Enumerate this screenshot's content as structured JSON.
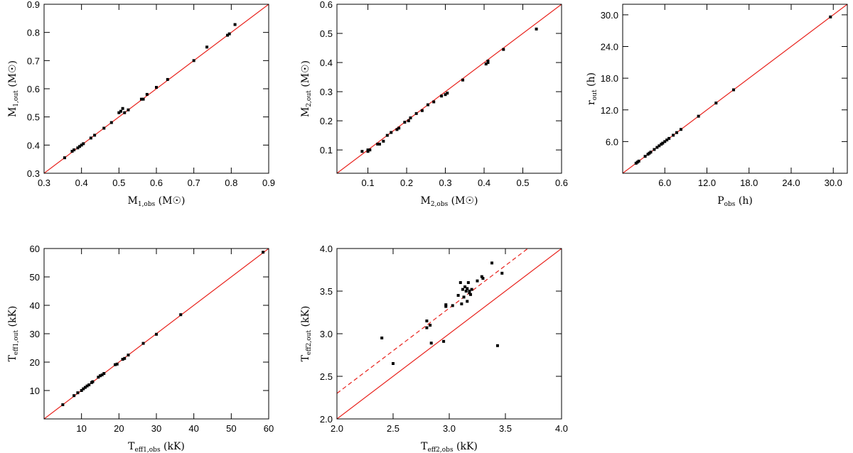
{
  "chart_data": [
    {
      "id": "m1",
      "type": "scatter",
      "xlim": [
        0.3,
        0.9
      ],
      "ylim": [
        0.3,
        0.9
      ],
      "xticks": [
        0.3,
        0.4,
        0.5,
        0.6,
        0.7,
        0.8,
        0.9
      ],
      "yticks": [
        0.3,
        0.4,
        0.5,
        0.6,
        0.7,
        0.8,
        0.9
      ],
      "xtick_labels": [
        "0.3",
        "0.4",
        "0.5",
        "0.6",
        "0.7",
        "0.8",
        "0.9"
      ],
      "ytick_labels": [
        "0.3",
        "0.4",
        "0.5",
        "0.6",
        "0.7",
        "0.8",
        "0.9"
      ],
      "xlabel": {
        "main": "M",
        "sub": "1,obs",
        "unit": " (M☉)"
      },
      "ylabel": {
        "main": "M",
        "sub": "1,out",
        "unit": " (M☉)"
      },
      "lines": [
        {
          "style": "solid",
          "color": "#e8211b",
          "from": [
            0.3,
            0.3
          ],
          "to": [
            0.9,
            0.9
          ]
        }
      ],
      "points": [
        [
          0.355,
          0.355
        ],
        [
          0.375,
          0.378
        ],
        [
          0.38,
          0.383
        ],
        [
          0.39,
          0.39
        ],
        [
          0.395,
          0.395
        ],
        [
          0.4,
          0.4
        ],
        [
          0.405,
          0.405
        ],
        [
          0.425,
          0.425
        ],
        [
          0.435,
          0.435
        ],
        [
          0.46,
          0.46
        ],
        [
          0.48,
          0.48
        ],
        [
          0.5,
          0.515
        ],
        [
          0.505,
          0.52
        ],
        [
          0.51,
          0.53
        ],
        [
          0.515,
          0.515
        ],
        [
          0.525,
          0.525
        ],
        [
          0.56,
          0.563
        ],
        [
          0.565,
          0.563
        ],
        [
          0.575,
          0.58
        ],
        [
          0.6,
          0.605
        ],
        [
          0.63,
          0.633
        ],
        [
          0.7,
          0.7
        ],
        [
          0.735,
          0.748
        ],
        [
          0.79,
          0.79
        ],
        [
          0.795,
          0.795
        ],
        [
          0.81,
          0.828
        ]
      ]
    },
    {
      "id": "m2",
      "type": "scatter",
      "xlim": [
        0.02,
        0.6
      ],
      "ylim": [
        0.02,
        0.6
      ],
      "xticks": [
        0.1,
        0.2,
        0.3,
        0.4,
        0.5,
        0.6
      ],
      "yticks": [
        0.1,
        0.2,
        0.3,
        0.4,
        0.5,
        0.6
      ],
      "xtick_labels": [
        "0.1",
        "0.2",
        "0.3",
        "0.4",
        "0.5",
        "0.6"
      ],
      "ytick_labels": [
        "0.1",
        "0.2",
        "0.3",
        "0.4",
        "0.5",
        "0.6"
      ],
      "xlabel": {
        "main": "M",
        "sub": "2,obs",
        "unit": " (M☉)"
      },
      "ylabel": {
        "main": "M",
        "sub": "2,out",
        "unit": " (M☉)"
      },
      "lines": [
        {
          "style": "solid",
          "color": "#e8211b",
          "from": [
            0.02,
            0.02
          ],
          "to": [
            0.6,
            0.6
          ]
        }
      ],
      "points": [
        [
          0.085,
          0.095
        ],
        [
          0.1,
          0.1
        ],
        [
          0.1,
          0.095
        ],
        [
          0.105,
          0.1
        ],
        [
          0.125,
          0.12
        ],
        [
          0.13,
          0.12
        ],
        [
          0.14,
          0.13
        ],
        [
          0.15,
          0.15
        ],
        [
          0.16,
          0.16
        ],
        [
          0.175,
          0.17
        ],
        [
          0.18,
          0.175
        ],
        [
          0.195,
          0.195
        ],
        [
          0.205,
          0.2
        ],
        [
          0.21,
          0.21
        ],
        [
          0.225,
          0.225
        ],
        [
          0.24,
          0.235
        ],
        [
          0.255,
          0.255
        ],
        [
          0.27,
          0.265
        ],
        [
          0.29,
          0.285
        ],
        [
          0.3,
          0.29
        ],
        [
          0.305,
          0.295
        ],
        [
          0.345,
          0.34
        ],
        [
          0.405,
          0.395
        ],
        [
          0.41,
          0.4
        ],
        [
          0.41,
          0.405
        ],
        [
          0.45,
          0.445
        ],
        [
          0.535,
          0.515
        ]
      ]
    },
    {
      "id": "period",
      "type": "scatter",
      "xlim": [
        0,
        32
      ],
      "ylim": [
        0,
        32
      ],
      "xticks": [
        6,
        12,
        18,
        24,
        30
      ],
      "yticks": [
        6,
        12,
        18,
        24,
        30
      ],
      "xtick_labels": [
        "6.0",
        "12.0",
        "18.0",
        "24.0",
        "30.0"
      ],
      "ytick_labels": [
        "6.0",
        "12.0",
        "18.0",
        "24.0",
        "30.0"
      ],
      "xlabel": {
        "main": "P",
        "sub": "obs",
        "unit": " (h)"
      },
      "ylabel": {
        "main": "r",
        "sub": "out",
        "unit": " (h)"
      },
      "lines": [
        {
          "style": "solid",
          "color": "#e8211b",
          "from": [
            0,
            0
          ],
          "to": [
            32,
            32
          ]
        }
      ],
      "points": [
        [
          1.9,
          1.9
        ],
        [
          2.1,
          2.1
        ],
        [
          2.3,
          2.3
        ],
        [
          3.2,
          3.2
        ],
        [
          3.6,
          3.6
        ],
        [
          3.8,
          3.8
        ],
        [
          4.0,
          4.0
        ],
        [
          4.5,
          4.5
        ],
        [
          4.9,
          4.9
        ],
        [
          5.2,
          5.2
        ],
        [
          5.5,
          5.5
        ],
        [
          5.7,
          5.7
        ],
        [
          6.0,
          6.0
        ],
        [
          6.3,
          6.3
        ],
        [
          6.6,
          6.6
        ],
        [
          7.2,
          7.2
        ],
        [
          7.7,
          7.7
        ],
        [
          8.3,
          8.3
        ],
        [
          10.8,
          10.8
        ],
        [
          13.3,
          13.3
        ],
        [
          15.8,
          15.8
        ],
        [
          29.6,
          29.6
        ]
      ]
    },
    {
      "id": "teff1",
      "type": "scatter",
      "xlim": [
        0,
        60
      ],
      "ylim": [
        0,
        60
      ],
      "xticks": [
        10,
        20,
        30,
        40,
        50,
        60
      ],
      "yticks": [
        10,
        20,
        30,
        40,
        50,
        60
      ],
      "xtick_labels": [
        "10",
        "20",
        "30",
        "40",
        "50",
        "60"
      ],
      "ytick_labels": [
        "10",
        "20",
        "30",
        "40",
        "50",
        "60"
      ],
      "xlabel": {
        "main": "T",
        "sub": "eff1,obs",
        "unit": " (kK)"
      },
      "ylabel": {
        "main": "T",
        "sub": "eff1,out",
        "unit": " (kK)"
      },
      "lines": [
        {
          "style": "solid",
          "color": "#e8211b",
          "from": [
            0,
            0
          ],
          "to": [
            60,
            60
          ]
        }
      ],
      "points": [
        [
          5,
          5
        ],
        [
          8,
          8.2
        ],
        [
          9,
          9.2
        ],
        [
          10,
          10
        ],
        [
          10.5,
          10.6
        ],
        [
          11,
          11.1
        ],
        [
          11.5,
          11.6
        ],
        [
          12,
          12
        ],
        [
          12.7,
          12.8
        ],
        [
          13,
          13.1
        ],
        [
          14.5,
          14.7
        ],
        [
          15,
          15.2
        ],
        [
          15.5,
          15.5
        ],
        [
          16,
          16
        ],
        [
          19,
          19.1
        ],
        [
          19.5,
          19.3
        ],
        [
          21,
          21
        ],
        [
          21.5,
          21.3
        ],
        [
          22.5,
          22.5
        ],
        [
          26.5,
          26.6
        ],
        [
          30,
          29.8
        ],
        [
          36.5,
          36.7
        ],
        [
          58.5,
          58.7
        ]
      ]
    },
    {
      "id": "teff2",
      "type": "scatter",
      "xlim": [
        2.0,
        4.0
      ],
      "ylim": [
        2.0,
        4.0
      ],
      "xticks": [
        2.0,
        2.5,
        3.0,
        3.5,
        4.0
      ],
      "yticks": [
        2.0,
        2.5,
        3.0,
        3.5,
        4.0
      ],
      "xtick_labels": [
        "2.0",
        "2.5",
        "3.0",
        "3.5",
        "4.0"
      ],
      "ytick_labels": [
        "2.0",
        "2.5",
        "3.0",
        "3.5",
        "4.0"
      ],
      "xlabel": {
        "main": "T",
        "sub": "eff2,obs",
        "unit": " (kK)"
      },
      "ylabel": {
        "main": "T",
        "sub": "eff2,out",
        "unit": " (kK)"
      },
      "lines": [
        {
          "style": "solid",
          "color": "#e8211b",
          "from": [
            2.0,
            2.0
          ],
          "to": [
            4.0,
            4.0
          ]
        },
        {
          "style": "dashed",
          "color": "#e8211b",
          "from": [
            2.0,
            2.3
          ],
          "to": [
            3.7,
            4.0
          ]
        }
      ],
      "points": [
        [
          2.4,
          2.95
        ],
        [
          2.5,
          2.65
        ],
        [
          2.8,
          3.15
        ],
        [
          2.8,
          3.07
        ],
        [
          2.83,
          3.1
        ],
        [
          2.84,
          2.89
        ],
        [
          2.95,
          2.91
        ],
        [
          2.97,
          3.32
        ],
        [
          2.97,
          3.34
        ],
        [
          3.03,
          3.33
        ],
        [
          3.08,
          3.45
        ],
        [
          3.1,
          3.6
        ],
        [
          3.11,
          3.35
        ],
        [
          3.12,
          3.52
        ],
        [
          3.13,
          3.43
        ],
        [
          3.14,
          3.55
        ],
        [
          3.15,
          3.5
        ],
        [
          3.16,
          3.38
        ],
        [
          3.16,
          3.53
        ],
        [
          3.17,
          3.6
        ],
        [
          3.18,
          3.48
        ],
        [
          3.18,
          3.5
        ],
        [
          3.19,
          3.46
        ],
        [
          3.2,
          3.52
        ],
        [
          3.25,
          3.62
        ],
        [
          3.29,
          3.67
        ],
        [
          3.3,
          3.65
        ],
        [
          3.38,
          3.83
        ],
        [
          3.43,
          2.86
        ],
        [
          3.47,
          3.71
        ]
      ]
    }
  ]
}
